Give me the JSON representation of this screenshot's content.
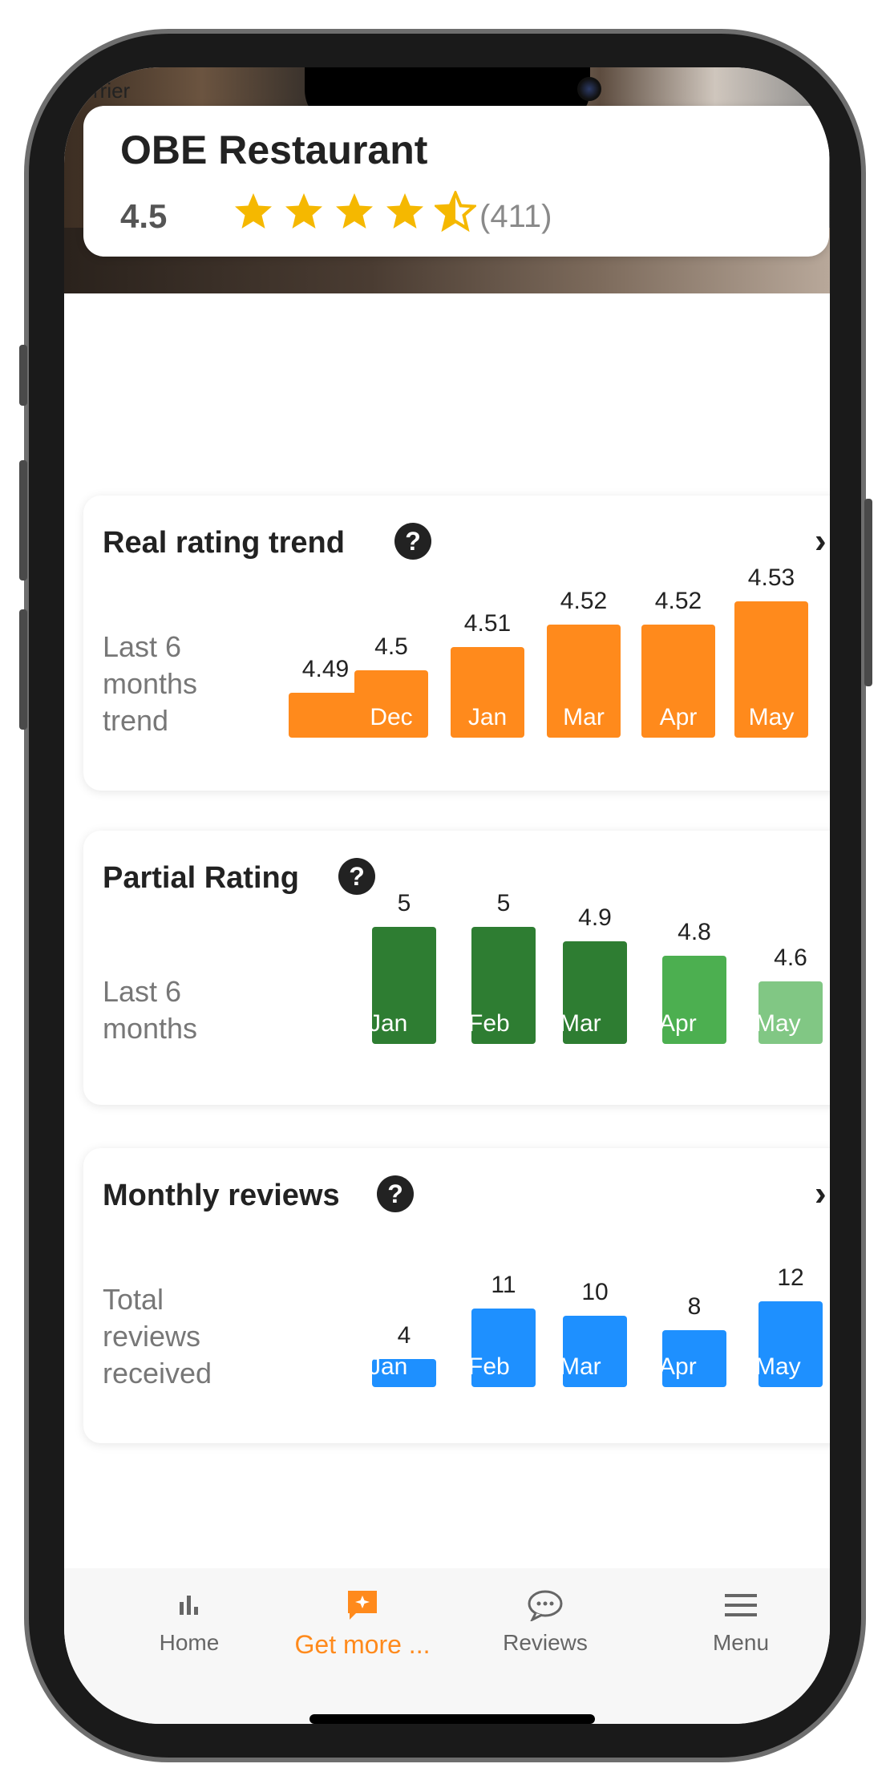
{
  "status": {
    "carrier": "rrier"
  },
  "restaurant": {
    "name": "OBE Restaurant",
    "rating": "4.5",
    "review_count": "(411)",
    "stars": 4.5
  },
  "colors": {
    "accent": "#ff8a1c",
    "green_dark": "#2e7d32",
    "green": "#4caf50",
    "green_light": "#81c784",
    "blue": "#1e90ff"
  },
  "cards": {
    "real_rating": {
      "title": "Real rating trend",
      "subtitle": "Last 6 months trend",
      "help_icon": "question-icon",
      "chevron_icon": "chevron-right-icon"
    },
    "partial_rating": {
      "title": "Partial Rating",
      "subtitle": "Last 6 months",
      "help_icon": "question-icon"
    },
    "monthly_reviews": {
      "title": "Monthly reviews",
      "subtitle": "Total reviews received",
      "help_icon": "question-icon",
      "chevron_icon": "chevron-right-icon"
    }
  },
  "chart_data": [
    {
      "type": "bar",
      "categories": [
        "",
        "Dec",
        "Jan",
        "Mar",
        "Apr",
        "May"
      ],
      "values": [
        4.49,
        4.5,
        4.51,
        4.52,
        4.52,
        4.53
      ],
      "value_labels": [
        "4.49",
        "4.5",
        "4.51",
        "4.52",
        "4.52",
        "4.53"
      ],
      "color": "#ff8a1c"
    },
    {
      "type": "bar",
      "categories": [
        "Jan",
        "Feb",
        "Mar",
        "Apr",
        "May"
      ],
      "values": [
        5,
        5,
        4.9,
        4.8,
        4.6
      ],
      "value_labels": [
        "5",
        "5",
        "4.9",
        "4.8",
        "4.6"
      ],
      "colors": [
        "#2e7d32",
        "#2e7d32",
        "#2e7d32",
        "#4caf50",
        "#81c784"
      ]
    },
    {
      "type": "bar",
      "categories": [
        "Jan",
        "Feb",
        "Mar",
        "Apr",
        "May"
      ],
      "values": [
        4,
        11,
        10,
        8,
        12
      ],
      "value_labels": [
        "4",
        "11",
        "10",
        "8",
        "12"
      ],
      "color": "#1e90ff"
    }
  ],
  "tabbar": {
    "items": [
      {
        "label": "Home",
        "icon": "bar-chart-icon"
      },
      {
        "label": "Get more ...",
        "icon": "sparkle-chat-icon",
        "active": true
      },
      {
        "label": "Reviews",
        "icon": "speech-bubble-icon"
      },
      {
        "label": "Menu",
        "icon": "hamburger-icon"
      }
    ]
  }
}
